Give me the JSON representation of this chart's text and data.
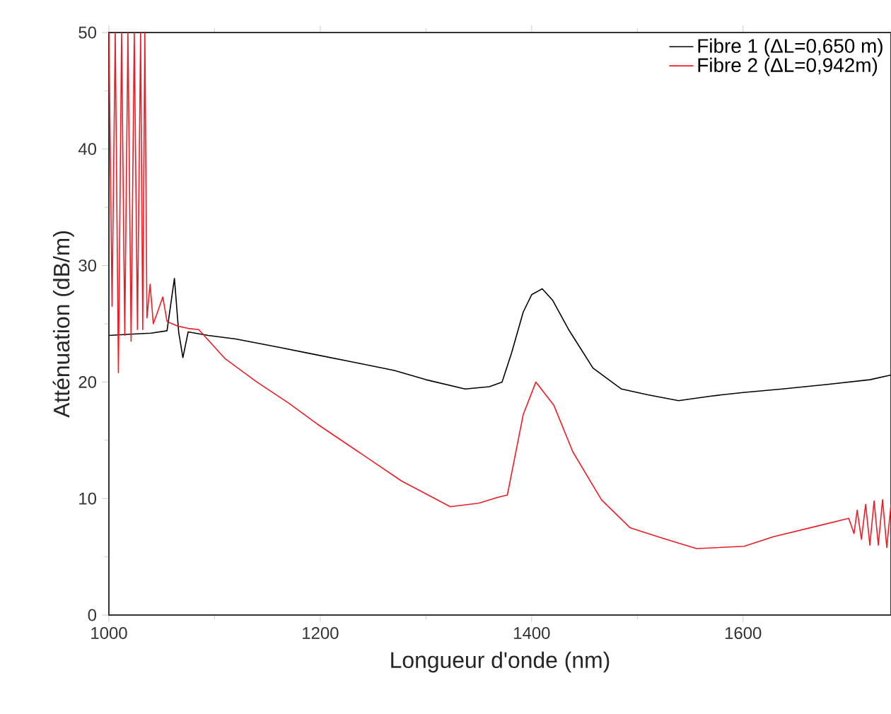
{
  "chart_data": {
    "type": "line",
    "xlabel": "Longueur d'onde (nm)",
    "ylabel": "Atténuation (dB/m)",
    "xlim": [
      1000,
      1740
    ],
    "ylim": [
      0,
      50
    ],
    "xticks": [
      1000,
      1200,
      1400,
      1600
    ],
    "yticks": [
      0,
      10,
      20,
      30,
      40,
      50
    ],
    "grid": false,
    "legend": "top right",
    "marker": "none",
    "line_style": "solid",
    "series": [
      {
        "name": "Fibre 1 (ΔL=0,650 m)",
        "color": "#000000",
        "x": [
          1000,
          1020,
          1040,
          1055,
          1062,
          1066,
          1070,
          1075,
          1094,
          1120,
          1160,
          1193,
          1237,
          1270,
          1300,
          1337,
          1360,
          1372,
          1381,
          1392,
          1400,
          1410,
          1420,
          1435,
          1458,
          1485,
          1510,
          1539,
          1570,
          1600,
          1637,
          1680,
          1720,
          1740
        ],
        "values": [
          24.0,
          24.1,
          24.2,
          24.4,
          28.9,
          24.3,
          22.1,
          24.3,
          24.0,
          23.7,
          23.0,
          22.4,
          21.6,
          21.0,
          20.2,
          19.4,
          19.6,
          20.0,
          22.5,
          26.0,
          27.5,
          28.0,
          27.0,
          24.5,
          21.2,
          19.4,
          18.9,
          18.4,
          18.8,
          19.1,
          19.4,
          19.8,
          20.2,
          20.6
        ]
      },
      {
        "name": "Fibre 2 (ΔL=0,942m)",
        "color": "#ee1c25",
        "x": [
          1000,
          1003,
          1006,
          1009,
          1012,
          1015,
          1018,
          1021,
          1024,
          1027,
          1030,
          1032,
          1034,
          1036,
          1039,
          1042,
          1046,
          1051,
          1055,
          1065,
          1075,
          1085,
          1110,
          1140,
          1170,
          1197,
          1233,
          1277,
          1323,
          1350,
          1368,
          1377,
          1392,
          1404,
          1421,
          1439,
          1466,
          1493,
          1520,
          1556,
          1601,
          1628,
          1673,
          1700,
          1705,
          1708,
          1712,
          1716,
          1720,
          1724,
          1728,
          1732,
          1736,
          1740
        ],
        "values": [
          50,
          26.5,
          50,
          20.8,
          50,
          24.0,
          50,
          23.5,
          50,
          24.5,
          50,
          24.5,
          50,
          25.5,
          28.4,
          25.0,
          26.0,
          27.3,
          25.2,
          24.8,
          24.6,
          24.5,
          22.0,
          20.0,
          18.2,
          16.4,
          14.2,
          11.5,
          9.3,
          9.6,
          10.1,
          10.3,
          17.2,
          20.0,
          18.0,
          14.0,
          9.9,
          7.5,
          6.7,
          5.7,
          5.9,
          6.7,
          7.7,
          8.3,
          7.0,
          9.0,
          6.5,
          9.5,
          6.0,
          9.8,
          6.0,
          9.9,
          5.8,
          9.5
        ]
      }
    ]
  }
}
